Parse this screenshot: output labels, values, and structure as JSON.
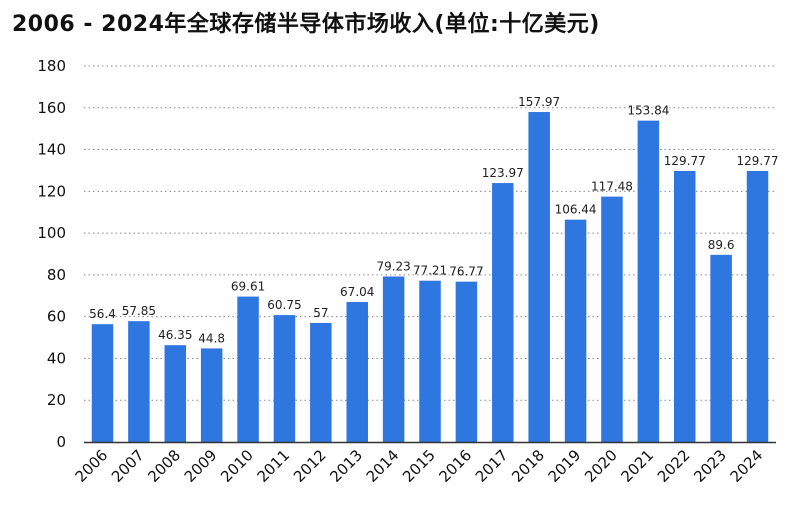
{
  "chart_data": {
    "type": "bar",
    "title": "2006 - 2024年全球存储半导体市场收入(单位:十亿美元)",
    "xlabel": "",
    "ylabel": "",
    "categories": [
      "2006",
      "2007",
      "2008",
      "2009",
      "2010",
      "2011",
      "2012",
      "2013",
      "2014",
      "2015",
      "2016",
      "2017",
      "2018",
      "2019",
      "2020",
      "2021",
      "2022",
      "2023",
      "2024"
    ],
    "values": [
      56.4,
      57.85,
      46.35,
      44.8,
      69.61,
      60.75,
      57,
      67.04,
      79.23,
      77.21,
      76.77,
      123.97,
      157.97,
      106.44,
      117.48,
      153.84,
      129.77,
      89.6,
      129.77
    ],
    "data_labels": [
      "56.4",
      "57.85",
      "46.35",
      "44.8",
      "69.61",
      "60.75",
      "57",
      "67.04",
      "79.23",
      "77.21",
      "76.77",
      "123.97",
      "157.97",
      "106.44",
      "117.48",
      "153.84",
      "129.77",
      "89.6",
      "129.77"
    ],
    "yticks": [
      "0",
      "20",
      "40",
      "60",
      "80",
      "100",
      "120",
      "140",
      "160",
      "180"
    ],
    "ylim": [
      0,
      180
    ],
    "grid": true,
    "legend": "none",
    "bar_color": "#2f77e0",
    "grid_color": "#8a8a8a",
    "axis_color": "#333333"
  }
}
